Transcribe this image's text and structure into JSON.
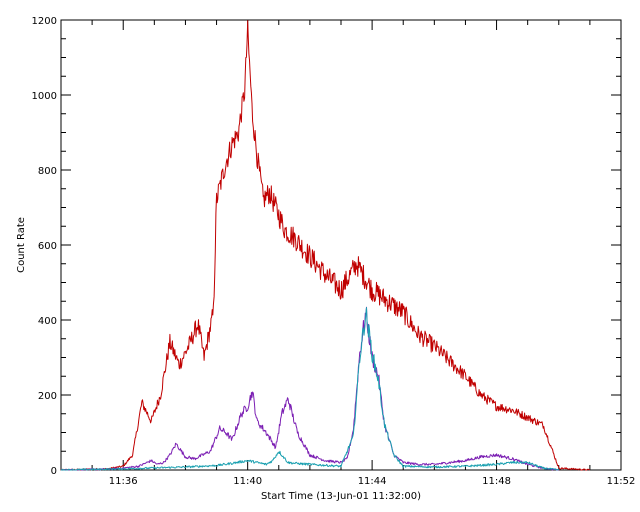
{
  "chart_data": {
    "type": "line",
    "title": "",
    "xlabel": "Start Time (13-Jun-01 11:32:00)",
    "ylabel": "Count Rate",
    "x_unit": "minutes",
    "xlim": [
      2.0,
      20.0
    ],
    "ylim": [
      0,
      1200
    ],
    "x_ticks": [
      {
        "value": 4,
        "label": "11:36"
      },
      {
        "value": 8,
        "label": "11:40"
      },
      {
        "value": 12,
        "label": "11:44"
      },
      {
        "value": 16,
        "label": "11:48"
      },
      {
        "value": 20,
        "label": "11:52"
      }
    ],
    "y_ticks": [
      0,
      200,
      400,
      600,
      800,
      1000,
      1200
    ],
    "grid": false,
    "legend": "none",
    "series": [
      {
        "color": "#c00000",
        "x": [
          2.0,
          3.5,
          4.0,
          4.3,
          4.6,
          4.9,
          5.2,
          5.5,
          5.8,
          6.1,
          6.4,
          6.6,
          6.9,
          7.0,
          7.3,
          7.5,
          7.7,
          7.9,
          8.0,
          8.15,
          8.3,
          8.5,
          8.7,
          8.9,
          9.2,
          9.5,
          10.0,
          10.5,
          11.0,
          11.5,
          12.0,
          12.5,
          13.0,
          13.5,
          14.0,
          14.5,
          15.0,
          15.5,
          16.0,
          16.5,
          17.0,
          17.5,
          18.0,
          19.0
        ],
        "y": [
          0,
          3,
          10,
          40,
          180,
          130,
          200,
          340,
          280,
          330,
          390,
          300,
          420,
          720,
          820,
          870,
          900,
          1010,
          1170,
          950,
          840,
          720,
          740,
          700,
          640,
          620,
          570,
          520,
          480,
          550,
          480,
          450,
          420,
          360,
          330,
          290,
          250,
          200,
          170,
          160,
          140,
          120,
          5,
          0
        ]
      },
      {
        "color": "#7b1fb3",
        "x": [
          2.0,
          3.5,
          4.0,
          4.5,
          4.9,
          5.1,
          5.3,
          5.5,
          5.7,
          6.0,
          6.3,
          6.8,
          7.0,
          7.1,
          7.3,
          7.5,
          7.8,
          8.0,
          8.15,
          8.3,
          8.6,
          8.9,
          9.1,
          9.3,
          9.6,
          10.0,
          10.5,
          11.0,
          11.2,
          11.4,
          11.6,
          11.8,
          12.0,
          12.2,
          12.4,
          12.7,
          13.0,
          13.5,
          14.0,
          14.5,
          15.0,
          15.5,
          16.0,
          16.5,
          17.0,
          17.5,
          18.0
        ],
        "y": [
          0,
          2,
          5,
          10,
          25,
          15,
          20,
          40,
          70,
          35,
          30,
          50,
          90,
          110,
          100,
          80,
          150,
          170,
          210,
          130,
          100,
          60,
          150,
          190,
          100,
          40,
          25,
          20,
          30,
          110,
          310,
          420,
          300,
          250,
          120,
          40,
          20,
          15,
          15,
          20,
          25,
          35,
          40,
          30,
          15,
          5,
          0
        ]
      },
      {
        "color": "#1aa0b0",
        "x": [
          2.0,
          4.0,
          6.0,
          7.0,
          7.5,
          8.0,
          8.3,
          8.6,
          8.8,
          9.0,
          9.3,
          9.5,
          10.0,
          11.0,
          11.4,
          11.6,
          11.8,
          12.0,
          12.2,
          12.4,
          12.7,
          13.0,
          14.0,
          15.0,
          16.0,
          16.5,
          17.0,
          17.5,
          18.0
        ],
        "y": [
          0,
          3,
          8,
          12,
          18,
          25,
          20,
          15,
          25,
          50,
          20,
          18,
          15,
          10,
          90,
          300,
          420,
          310,
          240,
          120,
          40,
          10,
          8,
          10,
          15,
          20,
          20,
          5,
          0
        ]
      }
    ]
  }
}
